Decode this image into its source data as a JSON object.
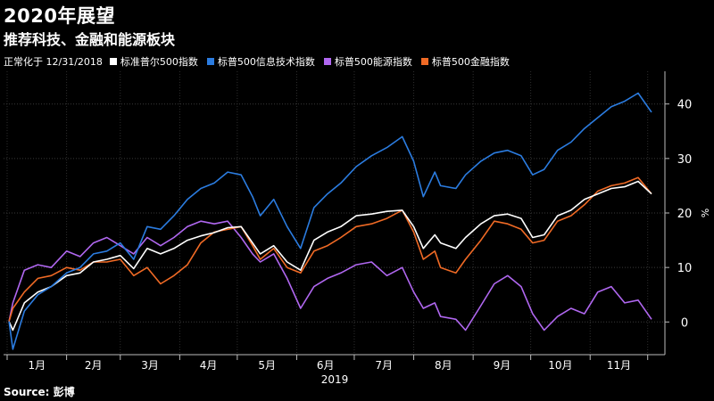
{
  "header": {
    "title": "2020年展望",
    "subtitle": "推荐科技、金融和能源板块"
  },
  "legend": {
    "note": "正常化于 12/31/2018"
  },
  "source": "Source: 彭博",
  "chart_data": {
    "type": "line",
    "xlabel": "2019",
    "ylabel": "%",
    "ylim": [
      -6,
      46
    ],
    "yticks": [
      0,
      10,
      20,
      30,
      40
    ],
    "x_start": "2019-01-01",
    "x_end": "2019-12-03",
    "month_labels": [
      "1月",
      "2月",
      "3月",
      "4月",
      "5月",
      "6月",
      "7月",
      "8月",
      "9月",
      "10月",
      "11月"
    ],
    "grid": true,
    "legend_position": "top",
    "series": [
      {
        "name": "标准普尔500指数",
        "color": "#ffffff",
        "points": [
          [
            "2019-01-02",
            0.1
          ],
          [
            "2019-01-04",
            -1.5
          ],
          [
            "2019-01-10",
            3.5
          ],
          [
            "2019-01-17",
            5.5
          ],
          [
            "2019-01-24",
            6.5
          ],
          [
            "2019-02-01",
            8.5
          ],
          [
            "2019-02-08",
            9.0
          ],
          [
            "2019-02-15",
            11.0
          ],
          [
            "2019-02-22",
            11.5
          ],
          [
            "2019-03-01",
            12.2
          ],
          [
            "2019-03-08",
            9.8
          ],
          [
            "2019-03-15",
            13.5
          ],
          [
            "2019-03-22",
            12.5
          ],
          [
            "2019-03-29",
            13.5
          ],
          [
            "2019-04-05",
            15.0
          ],
          [
            "2019-04-12",
            15.8
          ],
          [
            "2019-04-19",
            16.4
          ],
          [
            "2019-04-26",
            17.3
          ],
          [
            "2019-05-03",
            17.5
          ],
          [
            "2019-05-09",
            14.5
          ],
          [
            "2019-05-13",
            12.5
          ],
          [
            "2019-05-20",
            14.0
          ],
          [
            "2019-05-27",
            11.0
          ],
          [
            "2019-06-03",
            9.5
          ],
          [
            "2019-06-10",
            15.0
          ],
          [
            "2019-06-17",
            16.5
          ],
          [
            "2019-06-24",
            17.5
          ],
          [
            "2019-07-02",
            19.5
          ],
          [
            "2019-07-10",
            19.8
          ],
          [
            "2019-07-18",
            20.3
          ],
          [
            "2019-07-26",
            20.5
          ],
          [
            "2019-08-01",
            17.5
          ],
          [
            "2019-08-06",
            13.5
          ],
          [
            "2019-08-12",
            16.0
          ],
          [
            "2019-08-15",
            14.5
          ],
          [
            "2019-08-23",
            13.5
          ],
          [
            "2019-08-28",
            15.5
          ],
          [
            "2019-09-05",
            18.0
          ],
          [
            "2019-09-12",
            19.5
          ],
          [
            "2019-09-19",
            19.8
          ],
          [
            "2019-09-26",
            19.0
          ],
          [
            "2019-10-02",
            15.5
          ],
          [
            "2019-10-08",
            16.0
          ],
          [
            "2019-10-15",
            19.5
          ],
          [
            "2019-10-22",
            20.5
          ],
          [
            "2019-10-29",
            22.5
          ],
          [
            "2019-11-05",
            23.5
          ],
          [
            "2019-11-12",
            24.5
          ],
          [
            "2019-11-19",
            24.8
          ],
          [
            "2019-11-26",
            25.8
          ],
          [
            "2019-12-03",
            23.5
          ]
        ]
      },
      {
        "name": "标普500信息技术指数",
        "color": "#2b7ce0",
        "points": [
          [
            "2019-01-02",
            0.1
          ],
          [
            "2019-01-04",
            -5.0
          ],
          [
            "2019-01-10",
            2.0
          ],
          [
            "2019-01-17",
            5.0
          ],
          [
            "2019-01-24",
            6.5
          ],
          [
            "2019-02-01",
            9.0
          ],
          [
            "2019-02-08",
            10.0
          ],
          [
            "2019-02-15",
            12.5
          ],
          [
            "2019-02-22",
            13.0
          ],
          [
            "2019-03-01",
            14.5
          ],
          [
            "2019-03-08",
            11.5
          ],
          [
            "2019-03-15",
            17.5
          ],
          [
            "2019-03-22",
            17.0
          ],
          [
            "2019-03-29",
            19.5
          ],
          [
            "2019-04-05",
            22.5
          ],
          [
            "2019-04-12",
            24.5
          ],
          [
            "2019-04-19",
            25.5
          ],
          [
            "2019-04-26",
            27.5
          ],
          [
            "2019-05-03",
            27.0
          ],
          [
            "2019-05-09",
            23.0
          ],
          [
            "2019-05-13",
            19.5
          ],
          [
            "2019-05-20",
            22.5
          ],
          [
            "2019-05-27",
            17.5
          ],
          [
            "2019-06-03",
            13.5
          ],
          [
            "2019-06-10",
            21.0
          ],
          [
            "2019-06-17",
            23.5
          ],
          [
            "2019-06-24",
            25.5
          ],
          [
            "2019-07-02",
            28.5
          ],
          [
            "2019-07-10",
            30.5
          ],
          [
            "2019-07-18",
            32.0
          ],
          [
            "2019-07-26",
            34.0
          ],
          [
            "2019-08-01",
            29.5
          ],
          [
            "2019-08-06",
            23.0
          ],
          [
            "2019-08-12",
            27.5
          ],
          [
            "2019-08-15",
            25.0
          ],
          [
            "2019-08-23",
            24.5
          ],
          [
            "2019-08-28",
            27.0
          ],
          [
            "2019-09-05",
            29.5
          ],
          [
            "2019-09-12",
            31.0
          ],
          [
            "2019-09-19",
            31.5
          ],
          [
            "2019-09-26",
            30.5
          ],
          [
            "2019-10-02",
            27.0
          ],
          [
            "2019-10-08",
            28.0
          ],
          [
            "2019-10-15",
            31.5
          ],
          [
            "2019-10-22",
            33.0
          ],
          [
            "2019-10-29",
            35.5
          ],
          [
            "2019-11-05",
            37.5
          ],
          [
            "2019-11-12",
            39.5
          ],
          [
            "2019-11-19",
            40.5
          ],
          [
            "2019-11-26",
            42.0
          ],
          [
            "2019-12-03",
            38.5
          ]
        ]
      },
      {
        "name": "标普500能源指数",
        "color": "#b067f0",
        "points": [
          [
            "2019-01-02",
            0.1
          ],
          [
            "2019-01-04",
            3.5
          ],
          [
            "2019-01-10",
            9.5
          ],
          [
            "2019-01-17",
            10.5
          ],
          [
            "2019-01-24",
            10.0
          ],
          [
            "2019-02-01",
            13.0
          ],
          [
            "2019-02-08",
            12.0
          ],
          [
            "2019-02-15",
            14.5
          ],
          [
            "2019-02-22",
            15.5
          ],
          [
            "2019-03-01",
            14.0
          ],
          [
            "2019-03-08",
            12.5
          ],
          [
            "2019-03-15",
            15.5
          ],
          [
            "2019-03-22",
            14.0
          ],
          [
            "2019-03-29",
            15.5
          ],
          [
            "2019-04-05",
            17.5
          ],
          [
            "2019-04-12",
            18.5
          ],
          [
            "2019-04-19",
            18.0
          ],
          [
            "2019-04-26",
            18.5
          ],
          [
            "2019-05-03",
            15.5
          ],
          [
            "2019-05-09",
            12.5
          ],
          [
            "2019-05-13",
            11.0
          ],
          [
            "2019-05-20",
            12.5
          ],
          [
            "2019-05-27",
            8.0
          ],
          [
            "2019-06-03",
            2.5
          ],
          [
            "2019-06-10",
            6.5
          ],
          [
            "2019-06-17",
            8.0
          ],
          [
            "2019-06-24",
            9.0
          ],
          [
            "2019-07-02",
            10.5
          ],
          [
            "2019-07-10",
            11.0
          ],
          [
            "2019-07-18",
            8.5
          ],
          [
            "2019-07-26",
            10.0
          ],
          [
            "2019-08-01",
            5.5
          ],
          [
            "2019-08-06",
            2.5
          ],
          [
            "2019-08-12",
            3.5
          ],
          [
            "2019-08-15",
            1.0
          ],
          [
            "2019-08-23",
            0.5
          ],
          [
            "2019-08-28",
            -1.5
          ],
          [
            "2019-09-05",
            3.0
          ],
          [
            "2019-09-12",
            7.0
          ],
          [
            "2019-09-19",
            8.5
          ],
          [
            "2019-09-26",
            6.5
          ],
          [
            "2019-10-02",
            1.5
          ],
          [
            "2019-10-08",
            -1.5
          ],
          [
            "2019-10-15",
            1.0
          ],
          [
            "2019-10-22",
            2.5
          ],
          [
            "2019-10-29",
            1.5
          ],
          [
            "2019-11-05",
            5.5
          ],
          [
            "2019-11-12",
            6.5
          ],
          [
            "2019-11-19",
            3.5
          ],
          [
            "2019-11-26",
            4.0
          ],
          [
            "2019-12-03",
            0.5
          ]
        ]
      },
      {
        "name": "标普500金融指数",
        "color": "#f06a25",
        "points": [
          [
            "2019-01-02",
            0.1
          ],
          [
            "2019-01-04",
            2.5
          ],
          [
            "2019-01-10",
            5.5
          ],
          [
            "2019-01-17",
            8.0
          ],
          [
            "2019-01-24",
            8.5
          ],
          [
            "2019-02-01",
            10.0
          ],
          [
            "2019-02-08",
            9.5
          ],
          [
            "2019-02-15",
            11.0
          ],
          [
            "2019-02-22",
            11.0
          ],
          [
            "2019-03-01",
            11.5
          ],
          [
            "2019-03-08",
            8.5
          ],
          [
            "2019-03-15",
            10.0
          ],
          [
            "2019-03-22",
            7.0
          ],
          [
            "2019-03-29",
            8.5
          ],
          [
            "2019-04-05",
            10.5
          ],
          [
            "2019-04-12",
            14.5
          ],
          [
            "2019-04-19",
            16.5
          ],
          [
            "2019-04-26",
            17.0
          ],
          [
            "2019-05-03",
            17.5
          ],
          [
            "2019-05-09",
            14.0
          ],
          [
            "2019-05-13",
            11.5
          ],
          [
            "2019-05-20",
            13.5
          ],
          [
            "2019-05-27",
            10.0
          ],
          [
            "2019-06-03",
            9.0
          ],
          [
            "2019-06-10",
            13.0
          ],
          [
            "2019-06-17",
            14.0
          ],
          [
            "2019-06-24",
            15.5
          ],
          [
            "2019-07-02",
            17.5
          ],
          [
            "2019-07-10",
            18.0
          ],
          [
            "2019-07-18",
            19.0
          ],
          [
            "2019-07-26",
            20.5
          ],
          [
            "2019-08-01",
            16.5
          ],
          [
            "2019-08-06",
            11.5
          ],
          [
            "2019-08-12",
            13.0
          ],
          [
            "2019-08-15",
            10.0
          ],
          [
            "2019-08-23",
            9.0
          ],
          [
            "2019-08-28",
            11.5
          ],
          [
            "2019-09-05",
            15.0
          ],
          [
            "2019-09-12",
            18.5
          ],
          [
            "2019-09-19",
            18.0
          ],
          [
            "2019-09-26",
            17.0
          ],
          [
            "2019-10-02",
            14.5
          ],
          [
            "2019-10-08",
            15.0
          ],
          [
            "2019-10-15",
            18.5
          ],
          [
            "2019-10-22",
            19.5
          ],
          [
            "2019-10-29",
            21.5
          ],
          [
            "2019-11-05",
            24.0
          ],
          [
            "2019-11-12",
            25.0
          ],
          [
            "2019-11-19",
            25.5
          ],
          [
            "2019-11-26",
            26.5
          ],
          [
            "2019-12-03",
            23.5
          ]
        ]
      }
    ]
  }
}
